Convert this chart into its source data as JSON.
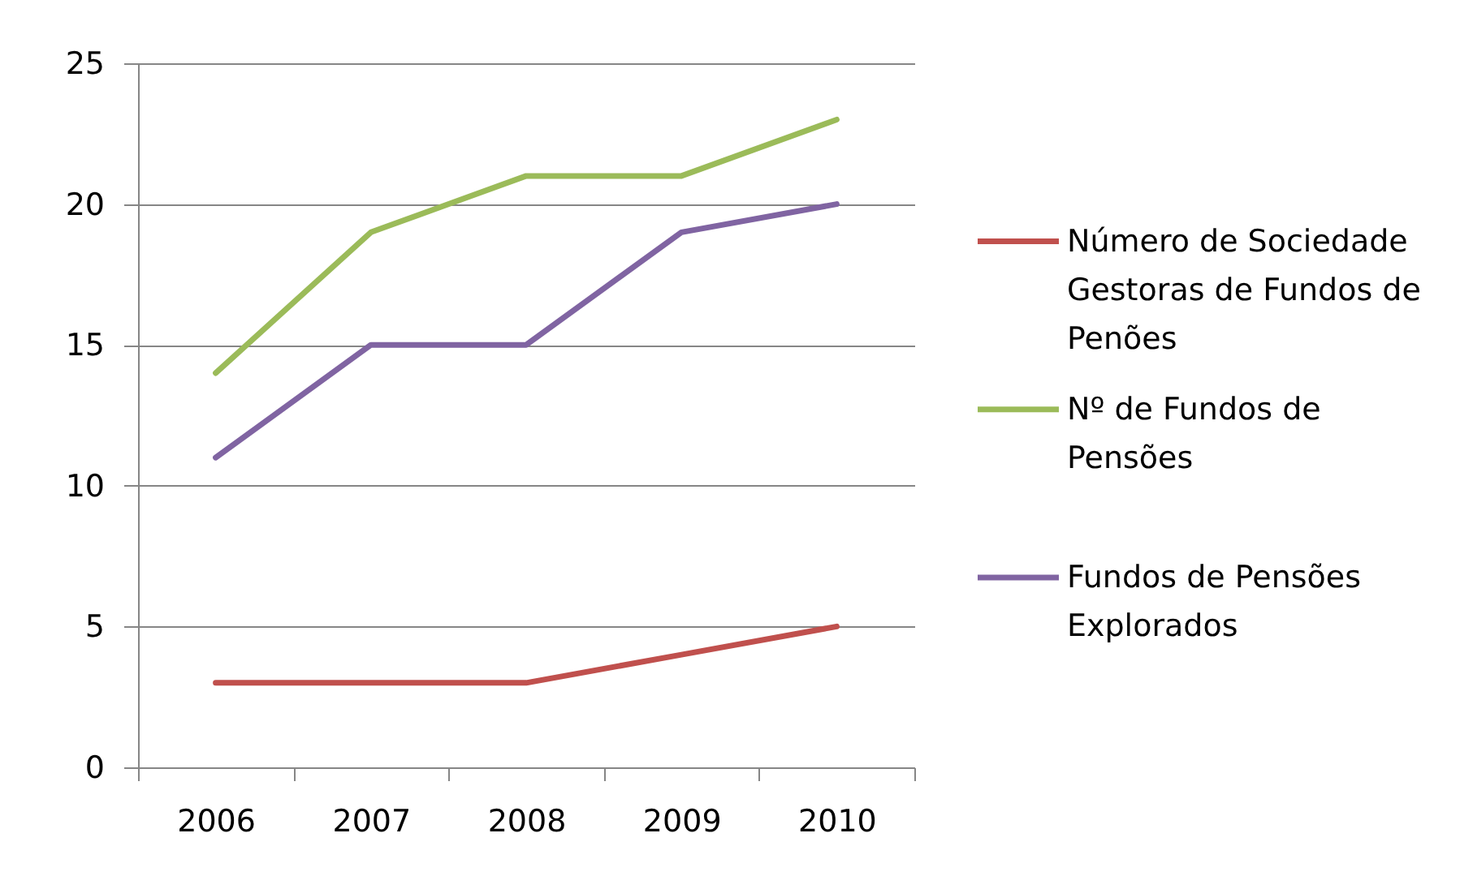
{
  "chart_data": {
    "type": "line",
    "categories": [
      "2006",
      "2007",
      "2008",
      "2009",
      "2010"
    ],
    "series": [
      {
        "name": "Número de Sociedade Gestoras de Fundos de Penões",
        "color": "#c0504d",
        "values": [
          3,
          3,
          3,
          4,
          5
        ]
      },
      {
        "name": "Nº de Fundos de Pensões",
        "color": "#9bbb59",
        "values": [
          14,
          19,
          21,
          21,
          23
        ]
      },
      {
        "name": "Fundos de Pensões Explorados",
        "color": "#8064a2",
        "values": [
          11,
          15,
          15,
          19,
          20
        ]
      }
    ],
    "ylim": [
      0,
      25
    ],
    "yticks": [
      0,
      5,
      10,
      15,
      20,
      25
    ],
    "grid": "y",
    "legend": "right",
    "line_style": "solid"
  }
}
